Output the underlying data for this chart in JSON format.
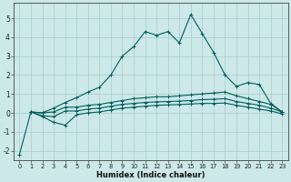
{
  "background_color": "#cce8e8",
  "grid_color": "#aacccc",
  "line_color": "#005f5f",
  "xlabel": "Humidex (Indice chaleur)",
  "xlim": [
    -0.5,
    23.5
  ],
  "ylim": [
    -2.5,
    5.8
  ],
  "yticks": [
    -2,
    -1,
    0,
    1,
    2,
    3,
    4,
    5
  ],
  "xticks": [
    0,
    1,
    2,
    3,
    4,
    5,
    6,
    7,
    8,
    9,
    10,
    11,
    12,
    13,
    14,
    15,
    16,
    17,
    18,
    19,
    20,
    21,
    22,
    23
  ],
  "line_main_x": [
    0,
    1,
    2,
    3,
    4,
    5,
    6,
    7,
    8,
    9,
    10,
    11,
    12,
    13,
    14,
    15,
    16,
    17,
    18,
    19,
    20,
    21,
    22,
    23
  ],
  "line_main_y": [
    -2.2,
    0.05,
    0.0,
    0.25,
    0.55,
    0.8,
    1.1,
    1.35,
    2.0,
    3.0,
    3.5,
    4.3,
    4.1,
    4.3,
    3.7,
    5.2,
    4.2,
    3.2,
    2.0,
    1.4,
    1.6,
    1.5,
    0.5,
    0.05
  ],
  "line_upper_x": [
    1,
    2,
    3,
    4,
    5,
    6,
    7,
    8,
    9,
    10,
    11,
    12,
    13,
    14,
    15,
    16,
    17,
    18,
    19,
    20,
    21,
    22,
    23
  ],
  "line_upper_y": [
    0.05,
    0.0,
    0.05,
    0.3,
    0.3,
    0.4,
    0.45,
    0.55,
    0.65,
    0.75,
    0.8,
    0.85,
    0.85,
    0.9,
    0.95,
    1.0,
    1.05,
    1.1,
    0.9,
    0.75,
    0.6,
    0.45,
    0.05
  ],
  "line_mid_x": [
    1,
    2,
    3,
    4,
    5,
    6,
    7,
    8,
    9,
    10,
    11,
    12,
    13,
    14,
    15,
    16,
    17,
    18,
    19,
    20,
    21,
    22,
    23
  ],
  "line_mid_y": [
    0.05,
    -0.15,
    -0.2,
    0.1,
    0.1,
    0.2,
    0.25,
    0.35,
    0.45,
    0.5,
    0.55,
    0.58,
    0.6,
    0.62,
    0.65,
    0.7,
    0.72,
    0.75,
    0.6,
    0.5,
    0.4,
    0.25,
    0.05
  ],
  "line_lower_x": [
    1,
    2,
    3,
    4,
    5,
    6,
    7,
    8,
    9,
    10,
    11,
    12,
    13,
    14,
    15,
    16,
    17,
    18,
    19,
    20,
    21,
    22,
    23
  ],
  "line_lower_y": [
    0.05,
    -0.2,
    -0.5,
    -0.65,
    -0.1,
    0.0,
    0.05,
    0.15,
    0.25,
    0.3,
    0.35,
    0.4,
    0.42,
    0.44,
    0.47,
    0.5,
    0.5,
    0.52,
    0.4,
    0.3,
    0.2,
    0.1,
    -0.05
  ],
  "marker": "+"
}
